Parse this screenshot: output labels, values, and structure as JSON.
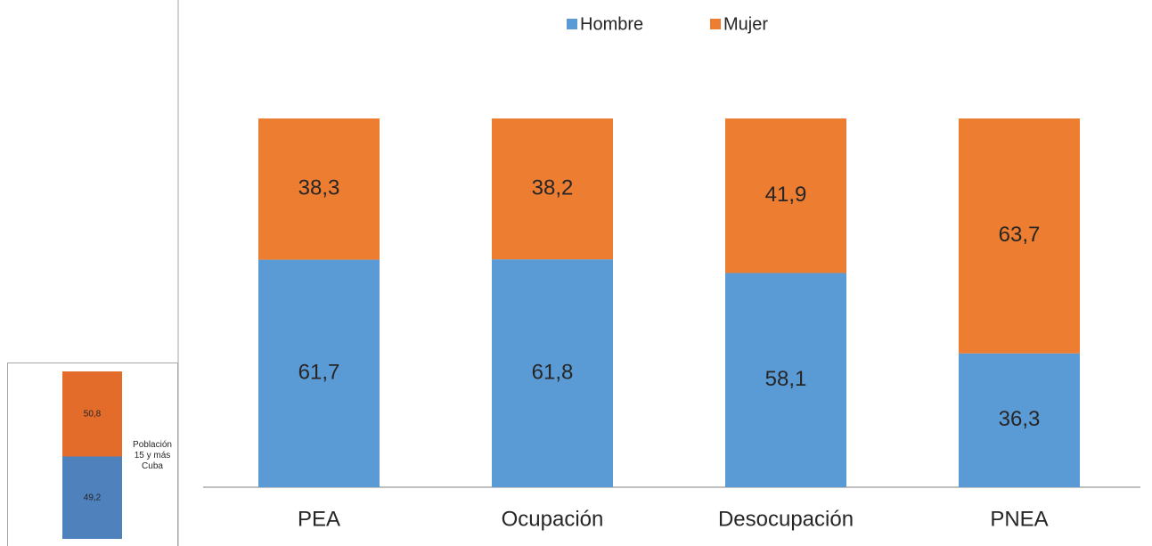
{
  "chart_data": [
    {
      "type": "stacked_bar",
      "categories": [
        "PEA",
        "Ocupación",
        "Desocupación",
        "PNEA"
      ],
      "series": [
        {
          "name": "Hombre",
          "color": "#5b9bd5",
          "values": [
            61.7,
            61.8,
            58.1,
            36.3
          ],
          "value_labels": [
            "61,7",
            "61,8",
            "58,1",
            "36,3"
          ]
        },
        {
          "name": "Mujer",
          "color": "#ed7d31",
          "values": [
            38.3,
            38.2,
            41.9,
            63.7
          ],
          "value_labels": [
            "38,3",
            "38,2",
            "41,9",
            "63,7"
          ]
        }
      ],
      "ylim": [
        0,
        100
      ],
      "legend": "top"
    },
    {
      "type": "stacked_bar",
      "categories": [
        "Población 15 y más Cuba"
      ],
      "series": [
        {
          "color": "#4f81bd",
          "values": [
            49.2
          ],
          "value_labels": [
            "49,2"
          ]
        },
        {
          "color": "#e46c2a",
          "values": [
            50.8
          ],
          "value_labels": [
            "50,8"
          ]
        }
      ],
      "ylim": [
        0,
        100
      ]
    }
  ]
}
